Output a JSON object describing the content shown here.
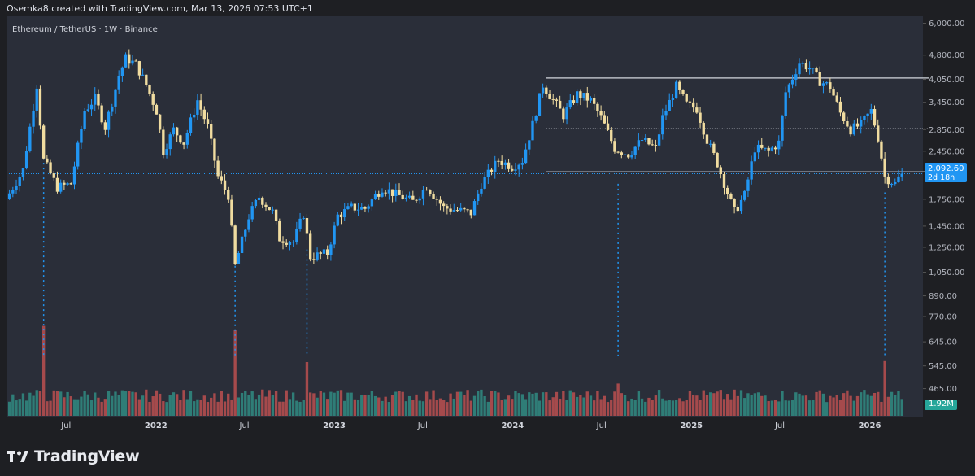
{
  "header": {
    "credit": "Osemka8 created with TradingView.com, Mar 13, 2026 07:53 UTC+1"
  },
  "chart_title": "Ethereum / TetherUS · 1W · Binance",
  "footer": {
    "brand": "TradingView",
    "logo_icon": "tradingview-logo-icon"
  },
  "colors": {
    "up": "#2196f3",
    "down": "#f0dca0",
    "vol_up": "#2f7d77",
    "vol_down": "#a54a4c",
    "line": "#d1d4dc",
    "dotted": "#2196f3"
  },
  "badges": {
    "last_price": "2,092.60",
    "countdown": "2d 18h",
    "volume": "1.92M"
  },
  "chart_data": {
    "type": "candlestick",
    "title": "Ethereum / TetherUS · 1W · Binance",
    "scale": "log",
    "ylim": [
      380,
      6300
    ],
    "y_ticks": [
      "6,000.00",
      "4,800.00",
      "4,050.00",
      "3,450.00",
      "2,850.00",
      "2,450.00",
      "1,750.00",
      "1,450.00",
      "1,250.00",
      "1,050.00",
      "890.00",
      "770.00",
      "645.00",
      "545.00",
      "465.00"
    ],
    "y_tick_values": [
      6000,
      4800,
      4050,
      3450,
      2850,
      2450,
      1750,
      1450,
      1250,
      1050,
      890,
      770,
      645,
      545,
      465
    ],
    "x_ticks": [
      {
        "label": "Jul",
        "date": "2021-07-01"
      },
      {
        "label": "2022",
        "date": "2022-01-01"
      },
      {
        "label": "Jul",
        "date": "2022-07-01"
      },
      {
        "label": "2023",
        "date": "2023-01-01"
      },
      {
        "label": "Jul",
        "date": "2023-07-01"
      },
      {
        "label": "2024",
        "date": "2024-01-01"
      },
      {
        "label": "Jul",
        "date": "2024-07-01"
      },
      {
        "label": "2025",
        "date": "2025-01-01"
      },
      {
        "label": "Jul",
        "date": "2025-07-01"
      },
      {
        "label": "2026",
        "date": "2026-01-01"
      }
    ],
    "x_range": [
      "2021-03-01",
      "2026-04-20"
    ],
    "last_price": 2092.6,
    "horizontal_lines": [
      {
        "from": "2024-03-10",
        "to": "2026-03-13",
        "price": 4090
      },
      {
        "from": "2024-03-10",
        "to": "2026-03-13",
        "price": 2870,
        "style": "dotted"
      },
      {
        "from": "2024-03-10",
        "to": "2026-03-13",
        "price": 2120
      }
    ],
    "vertical_markers": [
      "2021-05-16",
      "2022-06-12",
      "2022-11-06",
      "2024-08-04",
      "2026-02-01"
    ],
    "price_path": [
      [
        "2021-03-07",
        1750
      ],
      [
        "2021-04-11",
        2150
      ],
      [
        "2021-05-09",
        3900
      ],
      [
        "2021-05-23",
        2300
      ],
      [
        "2021-06-20",
        1900
      ],
      [
        "2021-07-18",
        1950
      ],
      [
        "2021-08-15",
        3250
      ],
      [
        "2021-09-05",
        3550
      ],
      [
        "2021-09-26",
        2900
      ],
      [
        "2021-10-24",
        4150
      ],
      [
        "2021-11-07",
        4700
      ],
      [
        "2021-11-28",
        4500
      ],
      [
        "2021-12-19",
        3900
      ],
      [
        "2022-01-09",
        3250
      ],
      [
        "2022-01-23",
        2450
      ],
      [
        "2022-02-13",
        2850
      ],
      [
        "2022-03-06",
        2600
      ],
      [
        "2022-04-03",
        3500
      ],
      [
        "2022-04-24",
        2900
      ],
      [
        "2022-05-15",
        2050
      ],
      [
        "2022-06-05",
        1800
      ],
      [
        "2022-06-19",
        1100
      ],
      [
        "2022-07-17",
        1550
      ],
      [
        "2022-08-07",
        1780
      ],
      [
        "2022-09-04",
        1600
      ],
      [
        "2022-09-18",
        1330
      ],
      [
        "2022-10-16",
        1300
      ],
      [
        "2022-11-06",
        1580
      ],
      [
        "2022-11-20",
        1170
      ],
      [
        "2022-12-25",
        1200
      ],
      [
        "2023-01-15",
        1560
      ],
      [
        "2023-02-12",
        1650
      ],
      [
        "2023-03-12",
        1640
      ],
      [
        "2023-04-16",
        1900
      ],
      [
        "2023-05-14",
        1810
      ],
      [
        "2023-06-18",
        1720
      ],
      [
        "2023-07-16",
        1920
      ],
      [
        "2023-08-20",
        1650
      ],
      [
        "2023-09-17",
        1620
      ],
      [
        "2023-10-15",
        1590
      ],
      [
        "2023-11-05",
        1950
      ],
      [
        "2023-12-10",
        2300
      ],
      [
        "2024-01-07",
        2200
      ],
      [
        "2024-01-28",
        2300
      ],
      [
        "2024-02-18",
        2950
      ],
      [
        "2024-03-10",
        3900
      ],
      [
        "2024-03-31",
        3500
      ],
      [
        "2024-04-21",
        3150
      ],
      [
        "2024-05-19",
        3650
      ],
      [
        "2024-06-16",
        3500
      ],
      [
        "2024-07-07",
        3100
      ],
      [
        "2024-08-04",
        2500
      ],
      [
        "2024-09-01",
        2400
      ],
      [
        "2024-09-29",
        2650
      ],
      [
        "2024-10-27",
        2500
      ],
      [
        "2024-11-10",
        3100
      ],
      [
        "2024-12-08",
        3850
      ],
      [
        "2024-12-29",
        3400
      ],
      [
        "2025-01-19",
        3300
      ],
      [
        "2025-02-09",
        2650
      ],
      [
        "2025-03-02",
        2250
      ],
      [
        "2025-04-06",
        1600
      ],
      [
        "2025-04-27",
        1800
      ],
      [
        "2025-05-18",
        2500
      ],
      [
        "2025-06-15",
        2450
      ],
      [
        "2025-07-06",
        2600
      ],
      [
        "2025-07-20",
        3700
      ],
      [
        "2025-08-17",
        4550
      ],
      [
        "2025-09-07",
        4400
      ],
      [
        "2025-09-28",
        4000
      ],
      [
        "2025-10-19",
        3850
      ],
      [
        "2025-11-09",
        3200
      ],
      [
        "2025-11-30",
        2850
      ],
      [
        "2025-12-21",
        2950
      ],
      [
        "2026-01-11",
        3250
      ],
      [
        "2026-01-25",
        2700
      ],
      [
        "2026-02-08",
        2050
      ],
      [
        "2026-03-01",
        1950
      ],
      [
        "2026-03-13",
        2092.6
      ]
    ],
    "volume_spikes": [
      {
        "date": "2021-05-16",
        "rel": 0.92,
        "dir": "down"
      },
      {
        "date": "2022-06-12",
        "rel": 0.88,
        "dir": "down"
      },
      {
        "date": "2022-11-06",
        "rel": 0.55,
        "dir": "down"
      },
      {
        "date": "2024-08-04",
        "rel": 0.33,
        "dir": "down"
      },
      {
        "date": "2026-02-01",
        "rel": 0.56,
        "dir": "down"
      }
    ]
  }
}
